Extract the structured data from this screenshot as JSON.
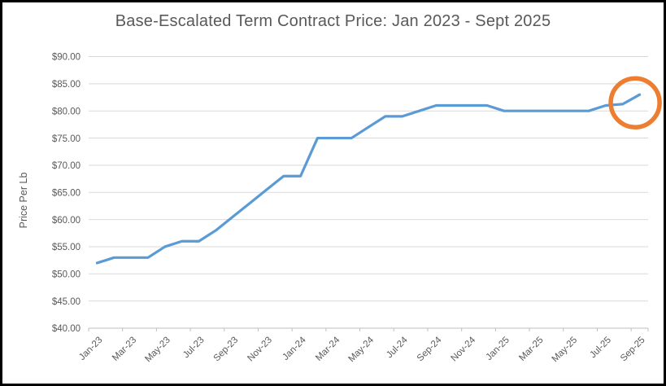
{
  "chart_data": {
    "type": "line",
    "title": "Base-Escalated Term Contract Price: Jan 2023 - Sept 2025",
    "ylabel": "Price Per Lb",
    "xlabel": "",
    "categories": [
      "Jan-23",
      "Feb-23",
      "Mar-23",
      "Apr-23",
      "May-23",
      "Jun-23",
      "Jul-23",
      "Aug-23",
      "Sep-23",
      "Oct-23",
      "Nov-23",
      "Dec-23",
      "Jan-24",
      "Feb-24",
      "Mar-24",
      "Apr-24",
      "May-24",
      "Jun-24",
      "Jul-24",
      "Aug-24",
      "Sep-24",
      "Oct-24",
      "Nov-24",
      "Dec-24",
      "Jan-25",
      "Feb-25",
      "Mar-25",
      "Apr-25",
      "May-25",
      "Jun-25",
      "Jul-25",
      "Aug-25",
      "Sep-25"
    ],
    "values": [
      52,
      53,
      53,
      53,
      55,
      56,
      56,
      58,
      60.5,
      63,
      65.5,
      68,
      68,
      75,
      75,
      75,
      77,
      79,
      79,
      80,
      81,
      81,
      81,
      81,
      80,
      80,
      80,
      80,
      80,
      80,
      81,
      81.25,
      83
    ],
    "ylim": [
      40,
      90
    ],
    "y_tick_values": [
      40,
      45,
      50,
      55,
      60,
      65,
      70,
      75,
      80,
      85,
      90
    ],
    "y_tick_labels": [
      "$40.00",
      "$45.00",
      "$50.00",
      "$55.00",
      "$60.00",
      "$65.00",
      "$70.00",
      "$75.00",
      "$80.00",
      "$85.00",
      "$90.00"
    ],
    "x_tick_interval": 2,
    "x_tick_labels": [
      "Jan-23",
      "Mar-23",
      "May-23",
      "Jul-23",
      "Sep-23",
      "Nov-23",
      "Jan-24",
      "Mar-24",
      "May-24",
      "Jul-24",
      "Sep-24",
      "Nov-24",
      "Jan-25",
      "Mar-25",
      "May-25",
      "Jul-25",
      "Sep-25"
    ],
    "grid": true,
    "legend": "none",
    "annotation": {
      "shape": "circle-outline",
      "target_category": "Sep-25",
      "target_value": 83,
      "color": "#ED7D31"
    },
    "colors": {
      "line": "#5B9BD5",
      "annotation": "#ED7D31",
      "text": "#595959",
      "gridline": "#D9D9D9",
      "axis": "#BFBFBF",
      "frame_border": "#000000"
    }
  }
}
